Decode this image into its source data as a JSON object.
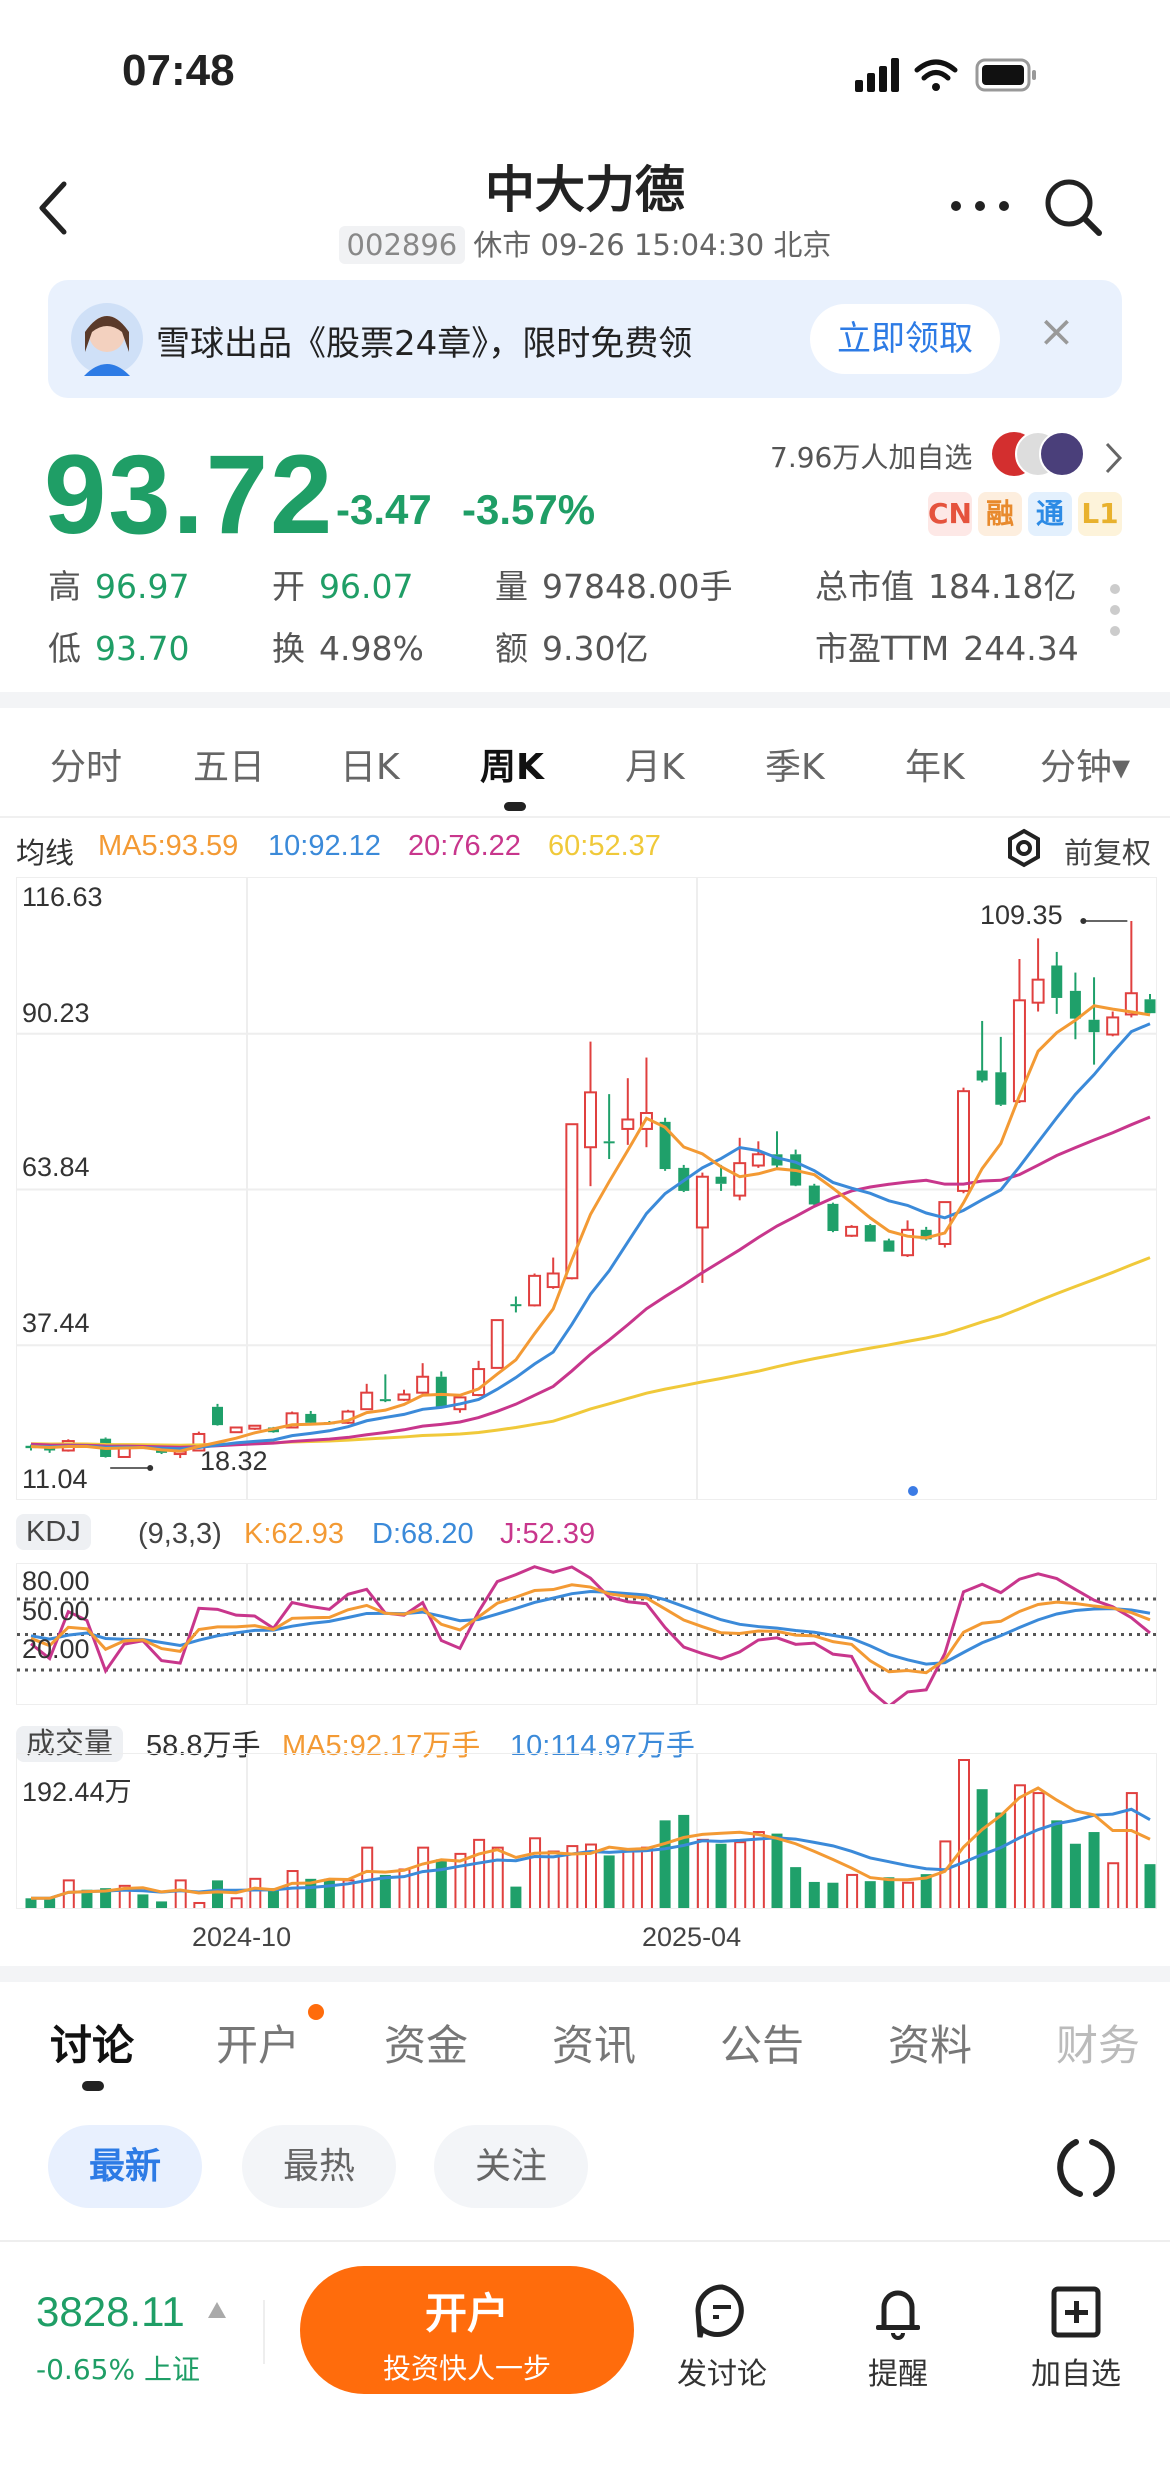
{
  "status_bar": {
    "time": "07:48"
  },
  "header": {
    "title": "中大力德",
    "code": "002896",
    "status": "休市 09-26 15:04:30 北京"
  },
  "banner": {
    "text": "雪球出品《股票24章》，限时免费领",
    "button": "立即领取",
    "close": "×"
  },
  "quote": {
    "price": "93.72",
    "change": "-3.47",
    "change_pct": "-3.57%",
    "watchers": "7.96万人加自选",
    "badges": [
      "CN",
      "融",
      "通",
      "L1"
    ],
    "stats": [
      {
        "label": "高",
        "value": "96.97"
      },
      {
        "label": "开",
        "value": "96.07"
      },
      {
        "label": "量",
        "value": "97848.00手"
      },
      {
        "label": "总市值",
        "value": "184.18亿"
      },
      {
        "label": "低",
        "value": "93.70"
      },
      {
        "label": "换",
        "value": "4.98%"
      },
      {
        "label": "额",
        "value": "9.30亿"
      },
      {
        "label": "市盈TTM",
        "value": "244.34"
      }
    ],
    "colors": {
      "down": "#1f9e66",
      "up": "#e0403f"
    }
  },
  "period_tabs": [
    "分时",
    "五日",
    "日K",
    "周K",
    "月K",
    "季K",
    "年K",
    "分钟▾"
  ],
  "active_period": "周K",
  "ma_legend": {
    "label": "均线",
    "ma5": "MA5:93.59",
    "ma10": "10:92.12",
    "ma20": "20:76.22",
    "ma60": "60:52.37",
    "adjust": "前复权"
  },
  "chart_data": [
    {
      "type": "candlestick",
      "title": "周K",
      "y_ticks": [
        "116.63",
        "90.23",
        "63.84",
        "37.44",
        "11.04"
      ],
      "ylim": [
        11.04,
        116.63
      ],
      "x_ticks": [
        "2024-10",
        "2025-04"
      ],
      "max_label": "109.35",
      "min_label": "18.32",
      "colors": {
        "up": "#e0403f",
        "down": "#1fa06a",
        "ma5": "#f39a34",
        "ma10": "#3b8ad9",
        "ma20": "#c8368c",
        "ma60": "#f0c93a"
      },
      "history_closes": [
        22.5,
        22.0,
        21.6,
        21.2,
        20.9,
        20.6,
        20.8,
        21.0,
        20.7,
        20.5,
        20.6,
        20.4,
        20.5,
        20.3,
        20.2,
        20.4,
        20.5,
        20.3,
        20.4,
        20.2
      ],
      "candles": [
        [
          20.4,
          20.6,
          19.6,
          20.0
        ],
        [
          20.0,
          20.2,
          19.2,
          19.6
        ],
        [
          19.6,
          21.5,
          19.4,
          21.2
        ],
        [
          20.6,
          20.8,
          20.2,
          20.4
        ],
        [
          21.6,
          21.8,
          18.4,
          18.5
        ],
        [
          18.5,
          20.5,
          18.4,
          20.4
        ],
        [
          20.4,
          20.6,
          19.9,
          20.0
        ],
        [
          19.6,
          19.8,
          19.0,
          19.2
        ],
        [
          19.0,
          19.6,
          18.32,
          19.4
        ],
        [
          19.6,
          22.8,
          19.5,
          22.4
        ],
        [
          27.0,
          27.5,
          23.8,
          23.9
        ],
        [
          22.7,
          23.6,
          22.6,
          23.5
        ],
        [
          23.3,
          23.9,
          23.1,
          23.8
        ],
        [
          23.5,
          23.6,
          22.6,
          22.7
        ],
        [
          23.5,
          26.2,
          23.4,
          25.9
        ],
        [
          25.8,
          26.3,
          24.2,
          24.3
        ],
        [
          24.4,
          24.6,
          24.0,
          24.3
        ],
        [
          24.3,
          26.5,
          24.1,
          26.2
        ],
        [
          26.6,
          30.9,
          26.5,
          29.4
        ],
        [
          28.3,
          32.5,
          27.8,
          28.0
        ],
        [
          28.2,
          29.9,
          28.0,
          29.1
        ],
        [
          29.4,
          34.4,
          29.2,
          32.1
        ],
        [
          32.1,
          33.0,
          26.8,
          27.0
        ],
        [
          26.6,
          28.8,
          26.0,
          28.6
        ],
        [
          29.0,
          34.8,
          28.8,
          33.4
        ],
        [
          33.6,
          41.8,
          33.5,
          41.7
        ],
        [
          44.4,
          45.7,
          43.0,
          44.1
        ],
        [
          44.2,
          49.6,
          44.0,
          49.2
        ],
        [
          47.3,
          52.3,
          47.0,
          49.6
        ],
        [
          48.8,
          74.9,
          48.6,
          74.9
        ],
        [
          71.0,
          88.9,
          64.4,
          80.3
        ],
        [
          72.0,
          80.0,
          69.0,
          71.8
        ],
        [
          74.1,
          82.7,
          71.4,
          75.7
        ],
        [
          74.1,
          86.2,
          71.0,
          76.8
        ],
        [
          75.3,
          76.0,
          67.0,
          67.3
        ],
        [
          67.5,
          68.0,
          63.4,
          63.6
        ],
        [
          57.4,
          66.7,
          48.0,
          66.0
        ],
        [
          66.0,
          68.0,
          63.6,
          64.8
        ],
        [
          62.8,
          72.6,
          62.0,
          68.3
        ],
        [
          67.9,
          72.0,
          67.5,
          69.8
        ],
        [
          69.8,
          73.7,
          67.5,
          67.9
        ],
        [
          69.8,
          70.6,
          64.4,
          64.5
        ],
        [
          64.5,
          64.8,
          61.2,
          61.3
        ],
        [
          61.4,
          61.6,
          56.6,
          56.8
        ],
        [
          56.0,
          57.8,
          55.8,
          57.5
        ],
        [
          57.8,
          58.0,
          55.0,
          55.0
        ],
        [
          55.2,
          55.5,
          53.3,
          53.3
        ],
        [
          52.7,
          58.6,
          52.4,
          57.0
        ],
        [
          57.0,
          57.5,
          55.2,
          55.4
        ],
        [
          54.6,
          61.7,
          54.0,
          61.7
        ],
        [
          63.6,
          81.1,
          63.2,
          80.5
        ],
        [
          84.0,
          92.4,
          82.0,
          82.3
        ],
        [
          83.7,
          89.7,
          78.0,
          78.2
        ],
        [
          78.8,
          102.9,
          78.5,
          95.9
        ],
        [
          95.5,
          106.4,
          94.0,
          99.4
        ],
        [
          101.8,
          104.1,
          93.6,
          96.3
        ],
        [
          97.5,
          100.6,
          89.3,
          92.8
        ],
        [
          92.6,
          99.8,
          85.0,
          90.5
        ],
        [
          90.1,
          94.0,
          89.8,
          93.0
        ],
        [
          93.5,
          109.35,
          93.0,
          97.1
        ],
        [
          96.07,
          96.97,
          93.7,
          93.72
        ]
      ]
    },
    {
      "type": "line",
      "title": "KDJ",
      "params": "(9,3,3)",
      "k": "K:62.93",
      "d": "D:68.20",
      "j": "J:52.39",
      "y_ticks": [
        "80.00",
        "50.00",
        "20.00"
      ],
      "colors": {
        "k": "#f39a34",
        "d": "#3b8ad9",
        "j": "#c8368c"
      }
    },
    {
      "type": "bar",
      "title": "成交量",
      "current": "58.8万手",
      "ma5": "MA5:92.17万手",
      "ma10": "10:114.97万手",
      "max_label": "192.44万",
      "unit": "万手",
      "ylim": [
        0,
        192.44
      ],
      "values": [
        15,
        15,
        38,
        26,
        28,
        31,
        20,
        11,
        38,
        9,
        38,
        15,
        40,
        28,
        50,
        40,
        40,
        38,
        80,
        45,
        52,
        80,
        65,
        72,
        90,
        80,
        30,
        92,
        75,
        82,
        84,
        70,
        78,
        80,
        115,
        122,
        90,
        85,
        87,
        100,
        98,
        55,
        36,
        35,
        45,
        37,
        42,
        35,
        46,
        88,
        192.44,
        155,
        125,
        160,
        150,
        115,
        85,
        100,
        60,
        150,
        58.8
      ]
    }
  ],
  "discussion_tabs": [
    "讨论",
    "开户",
    "资金",
    "资讯",
    "公告",
    "资料",
    "财务"
  ],
  "filter_chips": [
    "最新",
    "最热",
    "关注"
  ],
  "bottom_bar": {
    "index_value": "3828.11",
    "index_change": "-0.65%",
    "index_name": "上证",
    "open_account": "开户",
    "open_account_sub": "投资快人一步",
    "actions": [
      "发讨论",
      "提醒",
      "加自选"
    ]
  }
}
